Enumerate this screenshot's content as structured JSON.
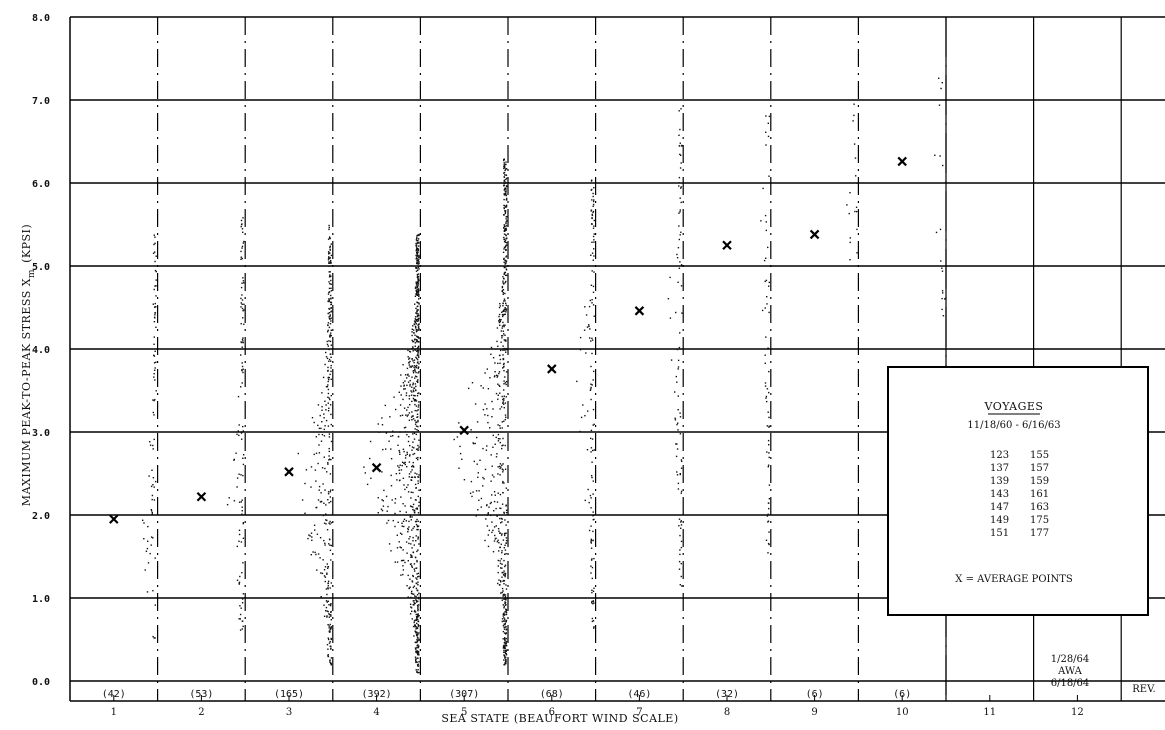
{
  "chart_data": {
    "type": "scatter",
    "xlabel": "SEA STATE (BEAUFORT WIND SCALE)",
    "ylabel_prefix": "MAXIMUM PEAK-TO-PEAK STRESS X",
    "ylabel_subscript": "m",
    "ylabel_suffix": "(KPSI)",
    "x_ticks": [
      "1",
      "2",
      "3",
      "4",
      "5",
      "6",
      "7",
      "8",
      "9",
      "10",
      "11",
      "12"
    ],
    "y_ticks": [
      "0.0",
      "1.0",
      "2.0",
      "3.0",
      "4.0",
      "5.0",
      "6.0",
      "7.0",
      "8.0"
    ],
    "ylim": [
      0,
      8
    ],
    "xlim": [
      0.5,
      12.5
    ],
    "average_points": [
      {
        "x": 1,
        "y": 1.95
      },
      {
        "x": 2,
        "y": 2.22
      },
      {
        "x": 3,
        "y": 2.52
      },
      {
        "x": 4,
        "y": 2.57
      },
      {
        "x": 5,
        "y": 3.02
      },
      {
        "x": 6,
        "y": 3.76
      },
      {
        "x": 7,
        "y": 4.46
      },
      {
        "x": 8,
        "y": 5.25
      },
      {
        "x": 9,
        "y": 5.38
      },
      {
        "x": 10,
        "y": 6.26
      }
    ],
    "sample_counts": [
      "(42)",
      "(53)",
      "(165)",
      "(392)",
      "(307)",
      "(68)",
      "(46)",
      "(32)",
      "(6)",
      "(6)"
    ],
    "distributions": [
      {
        "sea_state": 1,
        "count": 42,
        "range": [
          0.5,
          5.4
        ],
        "peak": 1.8
      },
      {
        "sea_state": 2,
        "count": 53,
        "range": [
          0.6,
          5.6
        ],
        "peak": 2.1
      },
      {
        "sea_state": 3,
        "count": 165,
        "range": [
          0.2,
          5.5
        ],
        "peak": 2.3
      },
      {
        "sea_state": 4,
        "count": 392,
        "range": [
          0.1,
          5.4
        ],
        "peak": 2.5
      },
      {
        "sea_state": 5,
        "count": 307,
        "range": [
          0.2,
          6.3
        ],
        "peak": 2.8
      },
      {
        "sea_state": 6,
        "count": 68,
        "range": [
          0.6,
          6.1
        ],
        "peak": 3.4
      },
      {
        "sea_state": 7,
        "count": 46,
        "range": [
          1.0,
          7.0
        ],
        "peak": 4.0
      },
      {
        "sea_state": 8,
        "count": 32,
        "range": [
          1.5,
          6.9
        ],
        "peak": 5.0
      },
      {
        "sea_state": 9,
        "count": 6,
        "range": [
          4.8,
          7.1
        ],
        "peak": 5.5
      },
      {
        "sea_state": 10,
        "count": 6,
        "range": [
          4.4,
          7.4
        ],
        "peak": 6.2
      }
    ],
    "grid": true
  },
  "legend": {
    "title": "VOYAGES",
    "date_range": "11/18/60 - 6/16/63",
    "voyages_col1": [
      "123",
      "137",
      "139",
      "143",
      "147",
      "149",
      "151"
    ],
    "voyages_col2": [
      "155",
      "157",
      "159",
      "161",
      "163",
      "175",
      "177"
    ],
    "marker_note": "X = AVERAGE POINTS"
  },
  "rev_block": {
    "date1": "1/28/64",
    "initials": "AWA",
    "date2": "6/18/64",
    "rev": "REV."
  }
}
